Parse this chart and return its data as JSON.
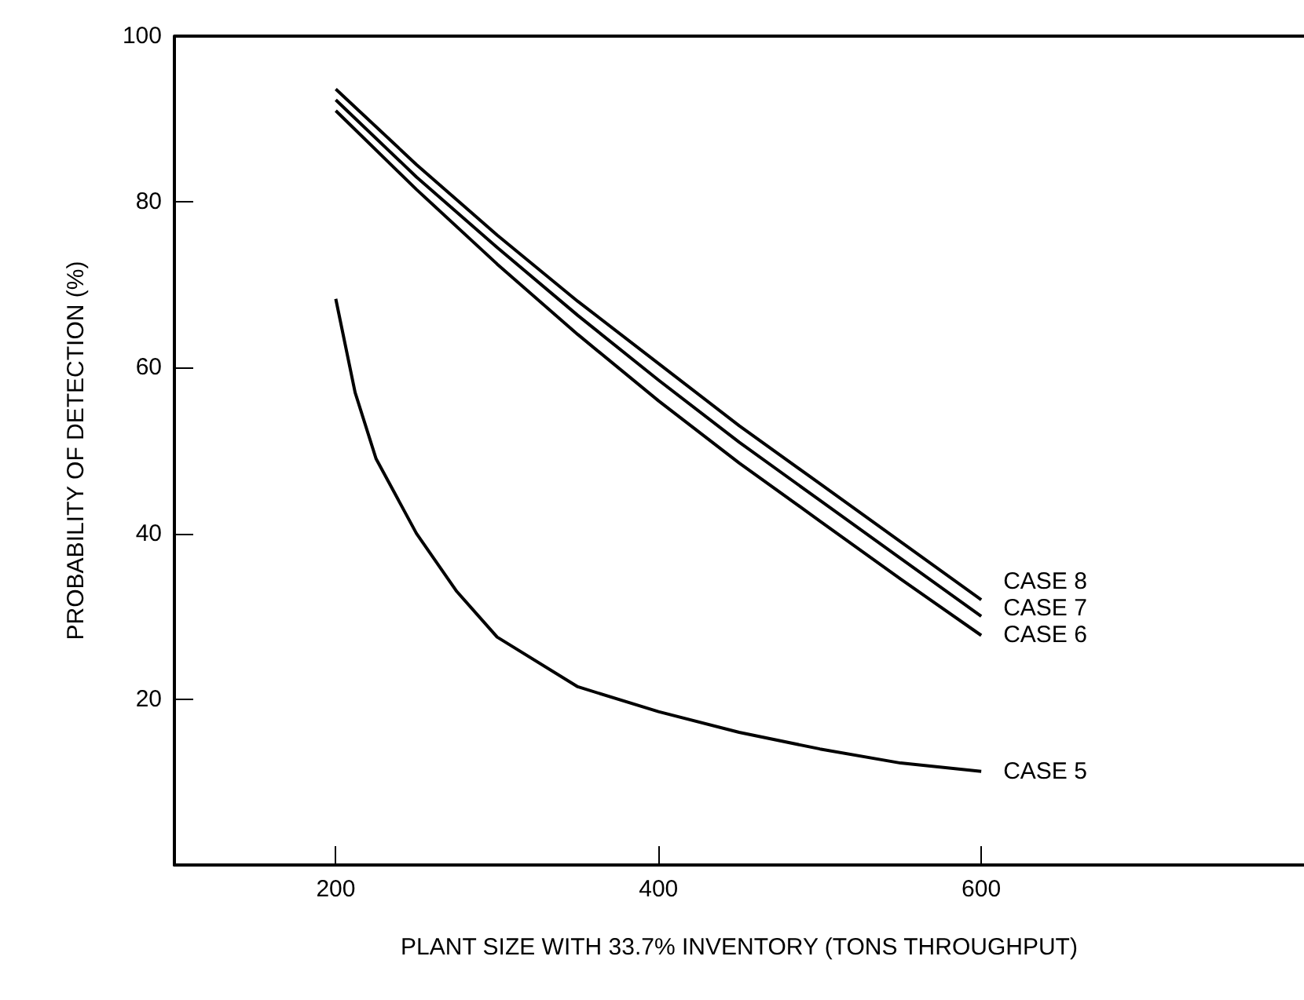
{
  "chart_data": {
    "type": "line",
    "xlabel": "PLANT SIZE WITH 33.7% INVENTORY (TONS THROUGHPUT)",
    "ylabel": "PROBABILITY OF DETECTION (%)",
    "xlim": [
      100,
      800
    ],
    "xticks": [
      200,
      400,
      600
    ],
    "ylim": [
      0,
      100
    ],
    "yticks": [
      20,
      40,
      60,
      80,
      100
    ],
    "grid": false,
    "legend": false,
    "marker": "none",
    "line_style": "solid",
    "series": [
      {
        "name": "CASE 8",
        "color": "#000000",
        "x": [
          200,
          250,
          300,
          350,
          400,
          450,
          500,
          550,
          600
        ],
        "values": [
          93.6,
          84.5,
          76,
          68,
          60.5,
          53,
          46,
          39,
          32
        ]
      },
      {
        "name": "CASE 7",
        "color": "#000000",
        "x": [
          200,
          250,
          300,
          350,
          400,
          450,
          500,
          550,
          600
        ],
        "values": [
          92.3,
          83,
          74.5,
          66.3,
          58.5,
          51,
          44,
          37,
          30
        ]
      },
      {
        "name": "CASE 6",
        "color": "#000000",
        "x": [
          200,
          250,
          300,
          350,
          400,
          450,
          500,
          550,
          600
        ],
        "values": [
          91,
          81.5,
          72.5,
          64,
          56,
          48.5,
          41.5,
          34.5,
          27.7
        ]
      },
      {
        "name": "CASE 5",
        "color": "#000000",
        "x": [
          200,
          212,
          225,
          250,
          275,
          300,
          350,
          400,
          450,
          500,
          550,
          600
        ],
        "values": [
          68.3,
          57,
          49,
          40,
          33,
          27.5,
          21.5,
          18.5,
          16,
          14,
          12.3,
          11.3
        ]
      }
    ]
  }
}
